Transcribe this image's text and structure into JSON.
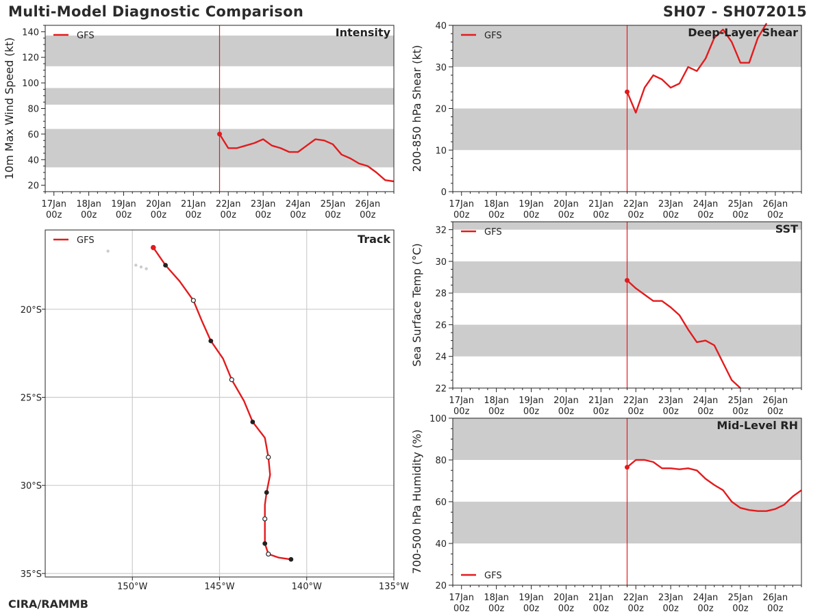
{
  "header": {
    "title": "Multi-Model Diagnostic Comparison",
    "storm_id": "SH07 - SH072015"
  },
  "footer": {
    "credit": "CIRA/RAMMB"
  },
  "colors": {
    "model_line": "#e31a1c",
    "band": "#cccccc",
    "axis": "#222222",
    "grid": "#cccccc",
    "land": "#cccccc"
  },
  "time_axis": {
    "ticks": [
      {
        "day": 0,
        "l1": "17Jan",
        "l2": "00z"
      },
      {
        "day": 1,
        "l1": "18Jan",
        "l2": "00z"
      },
      {
        "day": 2,
        "l1": "19Jan",
        "l2": "00z"
      },
      {
        "day": 3,
        "l1": "20Jan",
        "l2": "00z"
      },
      {
        "day": 4,
        "l1": "21Jan",
        "l2": "00z"
      },
      {
        "day": 5,
        "l1": "22Jan",
        "l2": "00z"
      },
      {
        "day": 6,
        "l1": "23Jan",
        "l2": "00z"
      },
      {
        "day": 7,
        "l1": "24Jan",
        "l2": "00z"
      },
      {
        "day": 8,
        "l1": "25Jan",
        "l2": "00z"
      },
      {
        "day": 9,
        "l1": "26Jan",
        "l2": "00z"
      }
    ],
    "xlim": [
      -0.25,
      9.75
    ],
    "init_day": 4.75
  },
  "chart_data": [
    {
      "id": "intensity",
      "type": "line",
      "title": "Intensity",
      "ylabel": "10m Max Wind Speed (kt)",
      "ylim": [
        15,
        145
      ],
      "yticks": [
        20,
        40,
        60,
        80,
        100,
        120,
        140
      ],
      "minor_step": 5,
      "bands": [
        [
          34,
          64
        ],
        [
          83,
          96
        ],
        [
          113,
          137
        ]
      ],
      "legend": "GFS",
      "legend_pos": "top-left",
      "series": [
        {
          "name": "GFS",
          "x": [
            4.75,
            5.0,
            5.25,
            5.5,
            5.75,
            6.0,
            6.25,
            6.5,
            6.75,
            7.0,
            7.25,
            7.5,
            7.75,
            8.0,
            8.25,
            8.5,
            8.75,
            9.0,
            9.25,
            9.5,
            9.75
          ],
          "y": [
            60,
            49,
            49,
            51,
            53,
            56,
            51,
            49,
            46,
            46,
            51,
            56,
            55,
            52,
            44,
            41,
            37,
            35,
            30,
            24,
            23
          ]
        }
      ]
    },
    {
      "id": "shear",
      "type": "line",
      "title": "Deep-Layer Shear",
      "ylabel": "200-850 hPa Shear (kt)",
      "ylim": [
        0,
        40
      ],
      "yticks": [
        0,
        10,
        20,
        30,
        40
      ],
      "minor_step": 2,
      "bands": [
        [
          10,
          20
        ],
        [
          30,
          40
        ]
      ],
      "legend": "GFS",
      "legend_pos": "top-left",
      "series": [
        {
          "name": "GFS",
          "x": [
            4.75,
            5.0,
            5.25,
            5.5,
            5.75,
            6.0,
            6.25,
            6.5,
            6.75,
            7.0,
            7.25,
            7.5,
            7.75,
            8.0,
            8.25,
            8.5,
            8.75
          ],
          "y": [
            24,
            19,
            25,
            28,
            27,
            25,
            26,
            30,
            29,
            32,
            37,
            39,
            36,
            31,
            31,
            37,
            40.5
          ]
        }
      ]
    },
    {
      "id": "sst",
      "type": "line",
      "title": "SST",
      "ylabel": "Sea Surface Temp (°C)",
      "ylim": [
        22,
        32.5
      ],
      "yticks": [
        22,
        24,
        26,
        28,
        30,
        32
      ],
      "minor_step": 0.5,
      "bands": [
        [
          24,
          26
        ],
        [
          28,
          30
        ],
        [
          32,
          32.5
        ]
      ],
      "legend": "GFS",
      "legend_pos": "top-left",
      "series": [
        {
          "name": "GFS",
          "x": [
            4.75,
            5.0,
            5.25,
            5.5,
            5.75,
            6.0,
            6.25,
            6.5,
            6.75,
            7.0,
            7.25,
            7.5,
            7.75,
            8.0
          ],
          "y": [
            28.8,
            28.3,
            27.9,
            27.5,
            27.5,
            27.1,
            26.6,
            25.7,
            24.9,
            25.0,
            24.7,
            23.6,
            22.5,
            22.0
          ]
        }
      ]
    },
    {
      "id": "rh",
      "type": "line",
      "title": "Mid-Level RH",
      "ylabel": "700-500 hPa Humidity (%)",
      "ylim": [
        20,
        100
      ],
      "yticks": [
        20,
        40,
        60,
        80,
        100
      ],
      "minor_step": 5,
      "bands": [
        [
          40,
          60
        ],
        [
          80,
          100
        ]
      ],
      "legend": "GFS",
      "legend_pos": "bottom-left",
      "series": [
        {
          "name": "GFS",
          "x": [
            4.75,
            5.0,
            5.25,
            5.5,
            5.75,
            6.0,
            6.25,
            6.5,
            6.75,
            7.0,
            7.25,
            7.5,
            7.75,
            8.0,
            8.25,
            8.5,
            8.75,
            9.0,
            9.25,
            9.5,
            9.75
          ],
          "y": [
            76.5,
            80,
            80,
            79,
            76,
            76,
            75.5,
            76,
            75,
            71,
            68,
            65.5,
            60,
            57,
            56,
            55.5,
            55.5,
            56.5,
            58.5,
            62.5,
            65.5
          ]
        }
      ]
    },
    {
      "id": "track",
      "type": "scatter",
      "title": "Track",
      "legend": "GFS",
      "legend_pos": "top-left",
      "xlim": [
        -155,
        -135
      ],
      "ylim": [
        -35.2,
        -15.5
      ],
      "xticks": [
        {
          "v": -150,
          "label": "150°W"
        },
        {
          "v": -145,
          "label": "145°W"
        },
        {
          "v": -140,
          "label": "140°W"
        },
        {
          "v": -135,
          "label": "135°W"
        }
      ],
      "yticks": [
        {
          "v": -20,
          "label": "20°S"
        },
        {
          "v": -25,
          "label": "25°S"
        },
        {
          "v": -30,
          "label": "30°S"
        },
        {
          "v": -35,
          "label": "35°S"
        }
      ],
      "points": [
        {
          "lon": -148.8,
          "lat": -16.5,
          "marker": "init"
        },
        {
          "lon": -148.1,
          "lat": -17.5,
          "marker": "filled"
        },
        {
          "lon": -147.3,
          "lat": -18.4,
          "marker": "none"
        },
        {
          "lon": -146.5,
          "lat": -19.5,
          "marker": "open"
        },
        {
          "lon": -146.0,
          "lat": -20.7,
          "marker": "none"
        },
        {
          "lon": -145.5,
          "lat": -21.8,
          "marker": "filled"
        },
        {
          "lon": -144.8,
          "lat": -22.8,
          "marker": "none"
        },
        {
          "lon": -144.3,
          "lat": -24.0,
          "marker": "open"
        },
        {
          "lon": -143.6,
          "lat": -25.2,
          "marker": "none"
        },
        {
          "lon": -143.1,
          "lat": -26.4,
          "marker": "filled"
        },
        {
          "lon": -142.4,
          "lat": -27.3,
          "marker": "none"
        },
        {
          "lon": -142.2,
          "lat": -28.4,
          "marker": "open"
        },
        {
          "lon": -142.1,
          "lat": -29.4,
          "marker": "none"
        },
        {
          "lon": -142.3,
          "lat": -30.4,
          "marker": "filled"
        },
        {
          "lon": -142.4,
          "lat": -31.1,
          "marker": "none"
        },
        {
          "lon": -142.4,
          "lat": -31.9,
          "marker": "open"
        },
        {
          "lon": -142.4,
          "lat": -32.6,
          "marker": "none"
        },
        {
          "lon": -142.4,
          "lat": -33.3,
          "marker": "filled"
        },
        {
          "lon": -142.2,
          "lat": -33.9,
          "marker": "open"
        },
        {
          "lon": -141.6,
          "lat": -34.1,
          "marker": "none"
        },
        {
          "lon": -140.9,
          "lat": -34.2,
          "marker": "filled"
        }
      ],
      "islands": [
        {
          "lon": -151.4,
          "lat": -16.7
        },
        {
          "lon": -149.8,
          "lat": -17.5
        },
        {
          "lon": -149.5,
          "lat": -17.6
        },
        {
          "lon": -149.2,
          "lat": -17.7
        }
      ]
    }
  ]
}
